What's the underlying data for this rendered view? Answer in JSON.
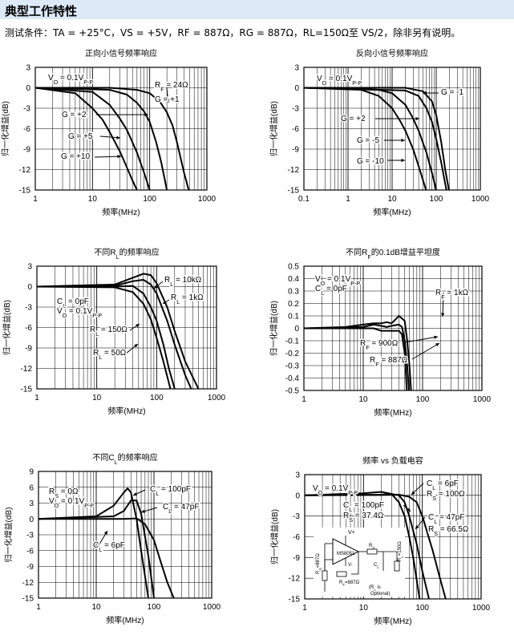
{
  "section": {
    "title": "典型工作特性",
    "conditions": "测试条件：TA = +25°C，VS = +5V，RF = 887Ω，RG = 887Ω，RL=150Ω至 VS/2，除非另有说明。"
  },
  "chart_data": [
    {
      "id": "c1",
      "type": "line",
      "title": "正向小信号频率响应",
      "xlabel": "频率(MHz)",
      "ylabel": "归一化增益(dB)",
      "xscale": "log",
      "xlim": [
        1,
        1000
      ],
      "ylim": [
        -15,
        3
      ],
      "xticks": [
        1,
        10,
        100,
        1000
      ],
      "yticks": [
        3,
        0,
        -3,
        -6,
        -9,
        -12,
        -15
      ],
      "annotations": [
        "V<sub>O</sub> = 0.1V<sub>P-P</sub>",
        "G = +1",
        "R<sub>F</sub> = 24Ω",
        "G = +2",
        "G = +5",
        "G = +10"
      ],
      "series": [
        {
          "name": "G = +1",
          "x": [
            1,
            20,
            60,
            100,
            150,
            200,
            250,
            300,
            400,
            500
          ],
          "y": [
            0,
            0,
            -0.3,
            -0.8,
            -2,
            -3.6,
            -5.5,
            -8,
            -12.5,
            -15.5
          ]
        },
        {
          "name": "G = +2",
          "x": [
            1,
            20,
            40,
            60,
            80,
            100,
            130,
            160,
            200
          ],
          "y": [
            0,
            -0.3,
            -1,
            -2.2,
            -3.5,
            -5,
            -8,
            -11,
            -15
          ]
        },
        {
          "name": "G = +5",
          "x": [
            1,
            10,
            20,
            30,
            40,
            50,
            60,
            80,
            100
          ],
          "y": [
            0,
            -0.6,
            -2.5,
            -4.5,
            -6.2,
            -8,
            -9.5,
            -12.5,
            -15
          ]
        },
        {
          "name": "G = +10",
          "x": [
            1,
            5,
            10,
            15,
            20,
            30,
            40,
            50,
            60
          ],
          "y": [
            0,
            -0.8,
            -3,
            -4.7,
            -6.5,
            -9.3,
            -11.7,
            -13.6,
            -15
          ]
        }
      ]
    },
    {
      "id": "c2",
      "type": "line",
      "title": "反向小信号频率响应",
      "xlabel": "频率(MHz)",
      "ylabel": "归一化增益(dB)",
      "xscale": "log",
      "xlim": [
        0.1,
        1000
      ],
      "ylim": [
        -15,
        3
      ],
      "xticks": [
        0.1,
        1,
        10,
        100,
        1000
      ],
      "yticks": [
        3,
        0,
        -3,
        -6,
        -9,
        -12,
        -15
      ],
      "annotations": [
        "V<sub>O</sub> = 0.1V<sub>P-P</sub>",
        "G = -1",
        "G = +2",
        "G = -5",
        "G = -10"
      ],
      "series": [
        {
          "name": "G = -1",
          "x": [
            0.1,
            20,
            50,
            80,
            100,
            130,
            160,
            200
          ],
          "y": [
            0,
            0,
            -0.5,
            -2,
            -4,
            -8,
            -12,
            -15.5
          ]
        },
        {
          "name": "G = +2",
          "x": [
            0.1,
            20,
            40,
            60,
            80,
            100,
            130,
            170
          ],
          "y": [
            0,
            -0.4,
            -1.2,
            -3,
            -5,
            -7.5,
            -11,
            -15
          ]
        },
        {
          "name": "G = -5",
          "x": [
            0.1,
            5,
            10,
            20,
            30,
            40,
            60,
            80,
            100
          ],
          "y": [
            0,
            -0.3,
            -0.8,
            -2.5,
            -4.5,
            -6.3,
            -9.5,
            -12.5,
            -15
          ]
        },
        {
          "name": "G = -10",
          "x": [
            0.1,
            2,
            5,
            10,
            15,
            20,
            30,
            40,
            50,
            60
          ],
          "y": [
            0,
            -0.3,
            -1.2,
            -3,
            -4.8,
            -6.3,
            -9,
            -11.5,
            -13.5,
            -15.2
          ]
        }
      ]
    },
    {
      "id": "c3",
      "type": "line",
      "title": "不同R<sub>L</sub>的频率响应",
      "xlabel": "频率(MHz)",
      "ylabel": "归一化增益(dB)",
      "xscale": "log",
      "xlim": [
        1,
        1000
      ],
      "ylim": [
        -15,
        3
      ],
      "xticks": [
        1,
        10,
        100,
        1000
      ],
      "yticks": [
        3,
        0,
        -3,
        -6,
        -9,
        -12,
        -15
      ],
      "annotations": [
        "R<sub>L</sub> = 10kΩ",
        "R<sub>L</sub> = 1kΩ",
        "C<sub>L</sub> = 0pF",
        "V<sub>O</sub> = 0.1V<sub>P-P</sub>",
        "R<sub>L</sub> = 150Ω",
        "R<sub>L</sub> = 50Ω"
      ],
      "series": [
        {
          "name": "R<sub>L</sub> = 10kΩ",
          "x": [
            1,
            20,
            40,
            60,
            80,
            100,
            150,
            200,
            300,
            500
          ],
          "y": [
            0,
            0.3,
            1.3,
            1.9,
            1.7,
            0.5,
            -3,
            -6.5,
            -11,
            -15
          ]
        },
        {
          "name": "R<sub>L</sub> = 1kΩ",
          "x": [
            1,
            20,
            40,
            60,
            80,
            100,
            150,
            200,
            300,
            400
          ],
          "y": [
            0,
            0.1,
            0.8,
            1,
            0.3,
            -1,
            -5,
            -8.5,
            -13,
            -15.5
          ]
        },
        {
          "name": "R<sub>L</sub> = 150Ω",
          "x": [
            1,
            20,
            40,
            60,
            80,
            100,
            130,
            160,
            200
          ],
          "y": [
            0,
            0,
            0.1,
            -1,
            -3,
            -5,
            -8.5,
            -12,
            -15
          ]
        },
        {
          "name": "R<sub>L</sub> = 50Ω",
          "x": [
            1,
            20,
            40,
            60,
            80,
            100,
            130,
            170
          ],
          "y": [
            0,
            -0.1,
            -0.8,
            -2.5,
            -4.8,
            -7.5,
            -11,
            -15
          ]
        }
      ]
    },
    {
      "id": "c4",
      "type": "line",
      "title": "不同R<sub>F</sub>的0.1dB增益平坦度",
      "xlabel": "频率(MHz)",
      "ylabel": "归一化增益(dB)",
      "xscale": "log",
      "xlim": [
        1,
        1000
      ],
      "ylim": [
        -0.5,
        0.5
      ],
      "xticks": [
        1,
        10,
        100,
        1000
      ],
      "yticks": [
        0.5,
        0.4,
        0.3,
        0.2,
        0.1,
        0,
        -0.1,
        -0.2,
        -0.3,
        -0.4,
        -0.5
      ],
      "annotations": [
        "V<sub>O</sub> = 0.1V<sub>P-P</sub>",
        "C<sub>L</sub> = 0pF",
        "R<sub>F</sub> = 1kΩ",
        "R<sub>F</sub> = 900Ω",
        "R<sub>F</sub> = 887Ω"
      ],
      "series": [
        {
          "name": "R<sub>F</sub> = 1kΩ",
          "x": [
            1,
            5,
            10,
            15,
            20,
            25,
            30,
            40,
            50,
            55,
            60,
            65
          ],
          "y": [
            0,
            0.01,
            0.03,
            0.04,
            0.04,
            0.05,
            0.04,
            0.1,
            0.06,
            -0.1,
            -0.3,
            -0.55
          ]
        },
        {
          "name": "R<sub>F</sub> = 900Ω",
          "x": [
            1,
            10,
            15,
            20,
            25,
            30,
            40,
            45,
            50,
            55,
            60
          ],
          "y": [
            0,
            0.01,
            0.03,
            0.02,
            0.01,
            0.02,
            0.03,
            0.01,
            -0.1,
            -0.3,
            -0.55
          ]
        },
        {
          "name": "R<sub>F</sub> = 887Ω",
          "x": [
            1,
            10,
            15,
            20,
            30,
            40,
            45,
            50,
            55
          ],
          "y": [
            0,
            0,
            0,
            -0.02,
            -0.02,
            -0.02,
            -0.05,
            -0.2,
            -0.55
          ]
        }
      ]
    },
    {
      "id": "c5",
      "type": "line",
      "title": "不同C<sub>L</sub>的频率响应",
      "xlabel": "频率(MHz)",
      "ylabel": "归一化增益(dB)",
      "xscale": "log",
      "xlim": [
        1,
        1000
      ],
      "ylim": [
        -15,
        9
      ],
      "xticks": [
        1,
        10,
        100,
        1000
      ],
      "yticks": [
        9,
        6,
        3,
        0,
        -3,
        -6,
        -9,
        -12,
        -15
      ],
      "annotations": [
        "C<sub>L</sub> = 100pF",
        "R<sub>S</sub> = 0Ω",
        "V<sub>O</sub> = 0.1V<sub>P-P</sub>",
        "C<sub>L</sub> = 47pF",
        "C<sub>L</sub> = 6pF"
      ],
      "series": [
        {
          "name": "C<sub>L</sub> = 100pF",
          "x": [
            1,
            10,
            20,
            30,
            35,
            40,
            50,
            60,
            80
          ],
          "y": [
            0,
            0.5,
            2.5,
            5,
            5.8,
            5,
            0,
            -6,
            -15
          ]
        },
        {
          "name": "C<sub>L</sub> = 47pF",
          "x": [
            1,
            20,
            30,
            40,
            50,
            60,
            80,
            100
          ],
          "y": [
            0,
            0.5,
            1.5,
            3.5,
            3.5,
            1,
            -7,
            -15
          ]
        },
        {
          "name": "C<sub>L</sub> = 6pF",
          "x": [
            1,
            30,
            50,
            70,
            100,
            130,
            170,
            220
          ],
          "y": [
            0,
            0,
            0.1,
            -1,
            -4,
            -8,
            -12,
            -15
          ]
        }
      ]
    },
    {
      "id": "c6",
      "type": "line",
      "title": "频率 vs 负载电容",
      "xlabel": "频率(MHz)",
      "ylabel": "归一化增益(dB)",
      "xscale": "log",
      "xlim": [
        1,
        1000
      ],
      "ylim": [
        -15,
        3
      ],
      "xticks": [
        1,
        10,
        100,
        1000
      ],
      "yticks": [
        3,
        0,
        -3,
        -6,
        -9,
        -12,
        -15
      ],
      "annotations": [
        "V<sub>O</sub> = 0.1V<sub>P-P</sub>",
        "C<sub>L</sub> = 6pF",
        "R<sub>S</sub> = 100Ω",
        "C<sub>L</sub> = 100pF",
        "R<sub>S</sub> = 37.4Ω",
        "C<sub>L</sub> = 47pF",
        "R<sub>S</sub> = 66.5Ω"
      ],
      "inset_labels": [
        "V+",
        "MS8051",
        "V-",
        "R<sub>S</sub>",
        "C<sub>L</sub>",
        "R<sub>L</sub>=150Ω",
        "R<sub>G</sub>=887Ω",
        "R<sub>F</sub>=887Ω",
        "(R<sub>L</sub> is",
        "Optional)"
      ],
      "series": [
        {
          "name": "C<sub>L</sub> = 6pF",
          "x": [
            1,
            20,
            40,
            60,
            80,
            100,
            150,
            200,
            250
          ],
          "y": [
            0,
            0.05,
            0.1,
            -0.2,
            -1,
            -3,
            -8,
            -12,
            -15
          ]
        },
        {
          "name": "C<sub>L</sub> = 100pF",
          "x": [
            1,
            10,
            20,
            30,
            40,
            50,
            60,
            70,
            90
          ],
          "y": [
            0,
            0.3,
            0.5,
            0.2,
            -1,
            -3,
            -6,
            -9,
            -15
          ]
        },
        {
          "name": "C<sub>L</sub> = 47pF",
          "x": [
            1,
            20,
            30,
            40,
            50,
            60,
            80,
            100,
            130
          ],
          "y": [
            0,
            0.1,
            0.2,
            0,
            -1,
            -3,
            -7,
            -11,
            -15
          ]
        }
      ]
    }
  ]
}
